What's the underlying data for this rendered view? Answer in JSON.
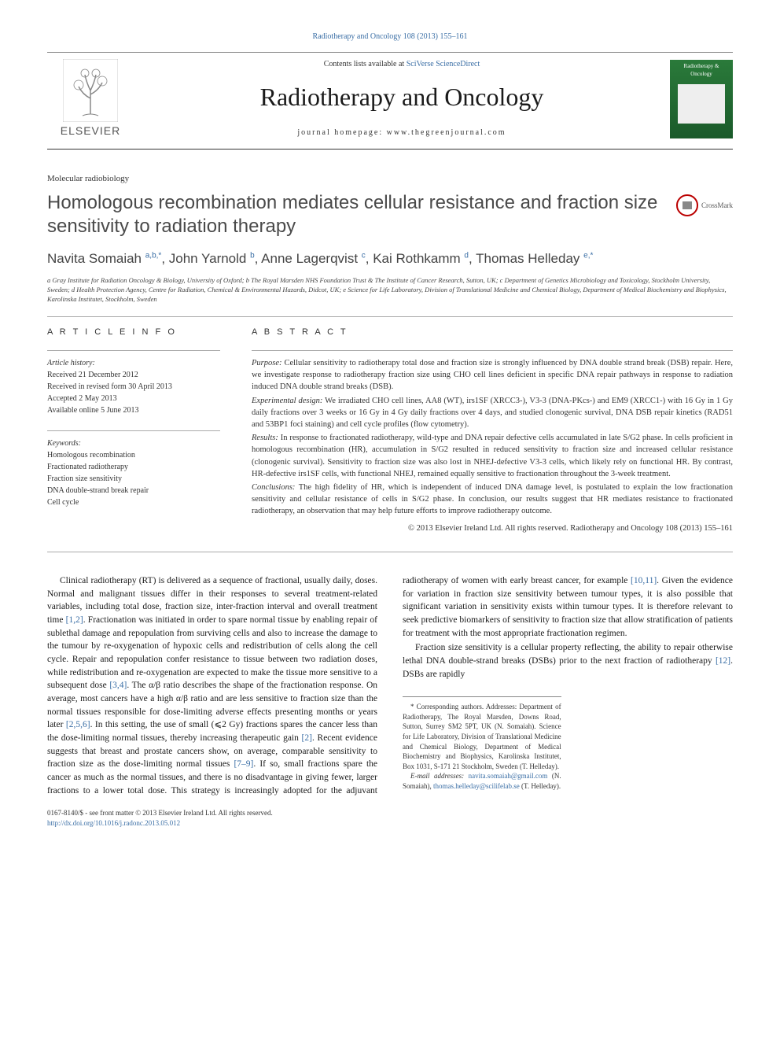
{
  "header": {
    "citation": "Radiotherapy and Oncology 108 (2013) 155–161",
    "contents_prefix": "Contents lists available at ",
    "contents_link": "SciVerse ScienceDirect",
    "journal_name": "Radiotherapy and Oncology",
    "homepage_label": "journal homepage: www.thegreenjournal.com",
    "publisher": "ELSEVIER",
    "cover_text": "Radiotherapy & Oncology"
  },
  "article": {
    "category": "Molecular radiobiology",
    "title": "Homologous recombination mediates cellular resistance and fraction size sensitivity to radiation therapy",
    "crossmark": "CrossMark",
    "authors_html": "Navita Somaiah <sup>a,b,*</sup>, John Yarnold <sup>b</sup>, Anne Lagerqvist <sup>c</sup>, Kai Rothkamm <sup>d</sup>, Thomas Helleday <sup>e,*</sup>",
    "affiliations": "a Gray Institute for Radiation Oncology & Biology, University of Oxford; b The Royal Marsden NHS Foundation Trust & The Institute of Cancer Research, Sutton, UK; c Department of Genetics Microbiology and Toxicology, Stockholm University, Sweden; d Health Protection Agency, Centre for Radiation, Chemical & Environmental Hazards, Didcot, UK; e Science for Life Laboratory, Division of Translational Medicine and Chemical Biology, Department of Medical Biochemistry and Biophysics, Karolinska Institutet, Stockholm, Sweden"
  },
  "info": {
    "heading": "A R T I C L E   I N F O",
    "history_label": "Article history:",
    "received": "Received 21 December 2012",
    "revised": "Received in revised form 30 April 2013",
    "accepted": "Accepted 2 May 2013",
    "online": "Available online 5 June 2013",
    "keywords_label": "Keywords:",
    "keywords": [
      "Homologous recombination",
      "Fractionated radiotherapy",
      "Fraction size sensitivity",
      "DNA double-strand break repair",
      "Cell cycle"
    ]
  },
  "abstract": {
    "heading": "A B S T R A C T",
    "purpose_label": "Purpose:",
    "purpose": " Cellular sensitivity to radiotherapy total dose and fraction size is strongly influenced by DNA double strand break (DSB) repair. Here, we investigate response to radiotherapy fraction size using CHO cell lines deficient in specific DNA repair pathways in response to radiation induced DNA double strand breaks (DSB).",
    "design_label": "Experimental design:",
    "design": " We irradiated CHO cell lines, AA8 (WT), irs1SF (XRCC3-), V3-3 (DNA-PKcs-) and EM9 (XRCC1-) with 16 Gy in 1 Gy daily fractions over 3 weeks or 16 Gy in 4 Gy daily fractions over 4 days, and studied clonogenic survival, DNA DSB repair kinetics (RAD51 and 53BP1 foci staining) and cell cycle profiles (flow cytometry).",
    "results_label": "Results:",
    "results": " In response to fractionated radiotherapy, wild-type and DNA repair defective cells accumulated in late S/G2 phase. In cells proficient in homologous recombination (HR), accumulation in S/G2 resulted in reduced sensitivity to fraction size and increased cellular resistance (clonogenic survival). Sensitivity to fraction size was also lost in NHEJ-defective V3-3 cells, which likely rely on functional HR. By contrast, HR-defective irs1SF cells, with functional NHEJ, remained equally sensitive to fractionation throughout the 3-week treatment.",
    "conclusions_label": "Conclusions:",
    "conclusions": " The high fidelity of HR, which is independent of induced DNA damage level, is postulated to explain the low fractionation sensitivity and cellular resistance of cells in S/G2 phase. In conclusion, our results suggest that HR mediates resistance to fractionated radiotherapy, an observation that may help future efforts to improve radiotherapy outcome.",
    "copyright": "© 2013 Elsevier Ireland Ltd. All rights reserved. Radiotherapy and Oncology 108 (2013) 155–161"
  },
  "body": {
    "p1a": "Clinical radiotherapy (RT) is delivered as a sequence of fractional, usually daily, doses. Normal and malignant tissues differ in their responses to several treatment-related variables, including total dose, fraction size, inter-fraction interval and overall treatment time ",
    "p1_ref1": "[1,2]",
    "p1b": ". Fractionation was initiated in order to spare normal tissue by enabling repair of sublethal damage and repopulation from surviving cells and also to increase the damage to the tumour by re-oxygenation of hypoxic cells and redistribution of cells along the cell cycle. Repair and repopulation confer resistance to tissue between two radiation doses, while redistribution and re-oxygenation are expected to make the tissue more sensitive to a subsequent dose ",
    "p1_ref2": "[3,4]",
    "p1c": ". The α/β ratio describes the shape of the fractionation response. On average, most cancers have a high α/β ratio and are less sensitive to fraction size than the normal tissues responsible for dose-limiting adverse effects presenting months or years later ",
    "p1_ref3": "[2,5,6]",
    "p1d": ". In this setting, the use of small (⩽2 Gy) fractions spares the cancer less than the dose-limiting normal tissues, thereby increasing therapeutic gain ",
    "p1_ref4": "[2]",
    "p1e": ". Recent evidence suggests that breast and prostate cancers show, on average, comparable sensitivity to fraction size as the dose-limiting normal tissues ",
    "p1_ref5": "[7–9]",
    "p1f": ". If so, small fractions spare the cancer as much as the normal tissues, and there is no disadvantage in giving fewer, larger fractions to a lower total dose. This strategy is increasingly adopted for the adjuvant radiotherapy of women with early breast cancer, for example ",
    "p1_ref6": "[10,11]",
    "p1g": ". Given the evidence for variation in fraction size sensitivity between tumour types, it is also possible that significant variation in sensitivity exists within tumour types. It is therefore relevant to seek predictive biomarkers of sensitivity to fraction size that allow stratification of patients for treatment with the most appropriate fractionation regimen.",
    "p2a": "Fraction size sensitivity is a cellular property reflecting, the ability to repair otherwise lethal DNA double-strand breaks (DSBs) prior to the next fraction of radiotherapy ",
    "p2_ref1": "[12]",
    "p2b": ". DSBs are rapidly"
  },
  "footnotes": {
    "corr": "* Corresponding authors. Addresses: Department of Radiotherapy, The Royal Marsden, Downs Road, Sutton, Surrey SM2 5PT, UK (N. Somaiah). Science for Life Laboratory, Division of Translational Medicine and Chemical Biology, Department of Medical Biochemistry and Biophysics, Karolinska Institutet, Box 1031, S-171 21 Stockholm, Sweden (T. Helleday).",
    "email_label": "E-mail addresses: ",
    "email1": "navita.somaiah@gmail.com",
    "email1_name": " (N. Somaiah), ",
    "email2": "thomas.helleday@scilifelab.se",
    "email2_name": " (T. Helleday)."
  },
  "footer": {
    "issn": "0167-8140/$ - see front matter © 2013 Elsevier Ireland Ltd. All rights reserved.",
    "doi": "http://dx.doi.org/10.1016/j.radonc.2013.05.012"
  },
  "colors": {
    "link": "#3a6ea5",
    "text": "#1a1a1a",
    "heading_gray": "#4a4a4a"
  }
}
